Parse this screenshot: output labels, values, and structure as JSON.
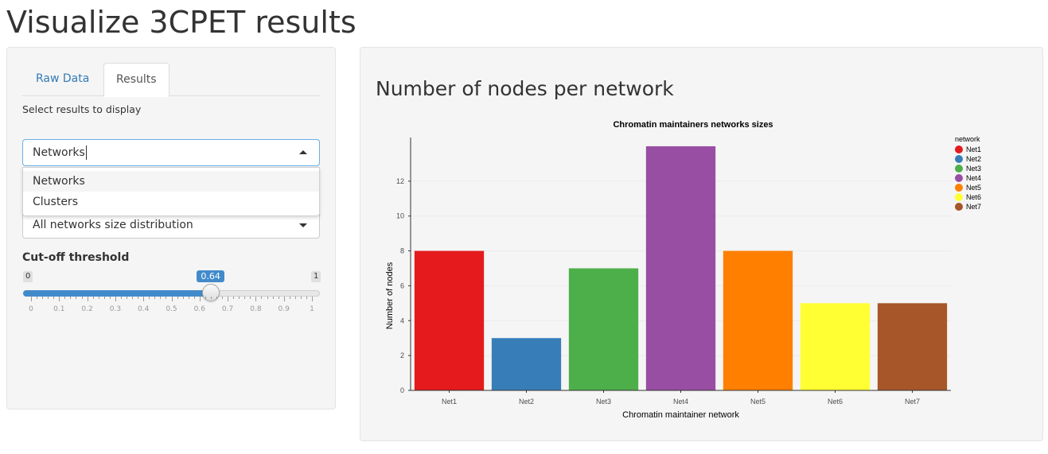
{
  "page": {
    "title": "Visualize 3CPET results"
  },
  "sidebar": {
    "tabs": [
      {
        "label": "Raw Data",
        "active": false
      },
      {
        "label": "Results",
        "active": true
      }
    ],
    "select_label": "Select results to display",
    "results_select": {
      "value": "Networks",
      "options": [
        "Networks",
        "Clusters"
      ]
    },
    "plot_select": {
      "value": "All networks size distribution"
    },
    "slider": {
      "label": "Cut-off threshold",
      "min": 0,
      "max": 1,
      "value": 0.64,
      "min_label": "0",
      "max_label": "1",
      "value_label": "0.64",
      "tick_labels": [
        "0",
        "0.1",
        "0.2",
        "0.3",
        "0.4",
        "0.5",
        "0.6",
        "0.7",
        "0.8",
        "0.9",
        "1"
      ]
    }
  },
  "main": {
    "heading": "Number of nodes per network"
  },
  "chart_data": {
    "type": "bar",
    "title": "Chromatin maintainers networks sizes",
    "xlabel": "Chromatin maintainer network",
    "ylabel": "Number of nodes",
    "categories": [
      "Net1",
      "Net2",
      "Net3",
      "Net4",
      "Net5",
      "Net6",
      "Net7"
    ],
    "values": [
      8,
      3,
      7,
      14,
      8,
      5,
      5
    ],
    "colors": [
      "#e41a1c",
      "#377eb8",
      "#4daf4a",
      "#984ea3",
      "#ff7f00",
      "#ffff33",
      "#a65628"
    ],
    "y_ticks": [
      0,
      2,
      4,
      6,
      8,
      10,
      12
    ],
    "ylim": [
      0,
      14.5
    ],
    "legend": {
      "title": "network",
      "position": "top-right"
    },
    "grid": true
  }
}
